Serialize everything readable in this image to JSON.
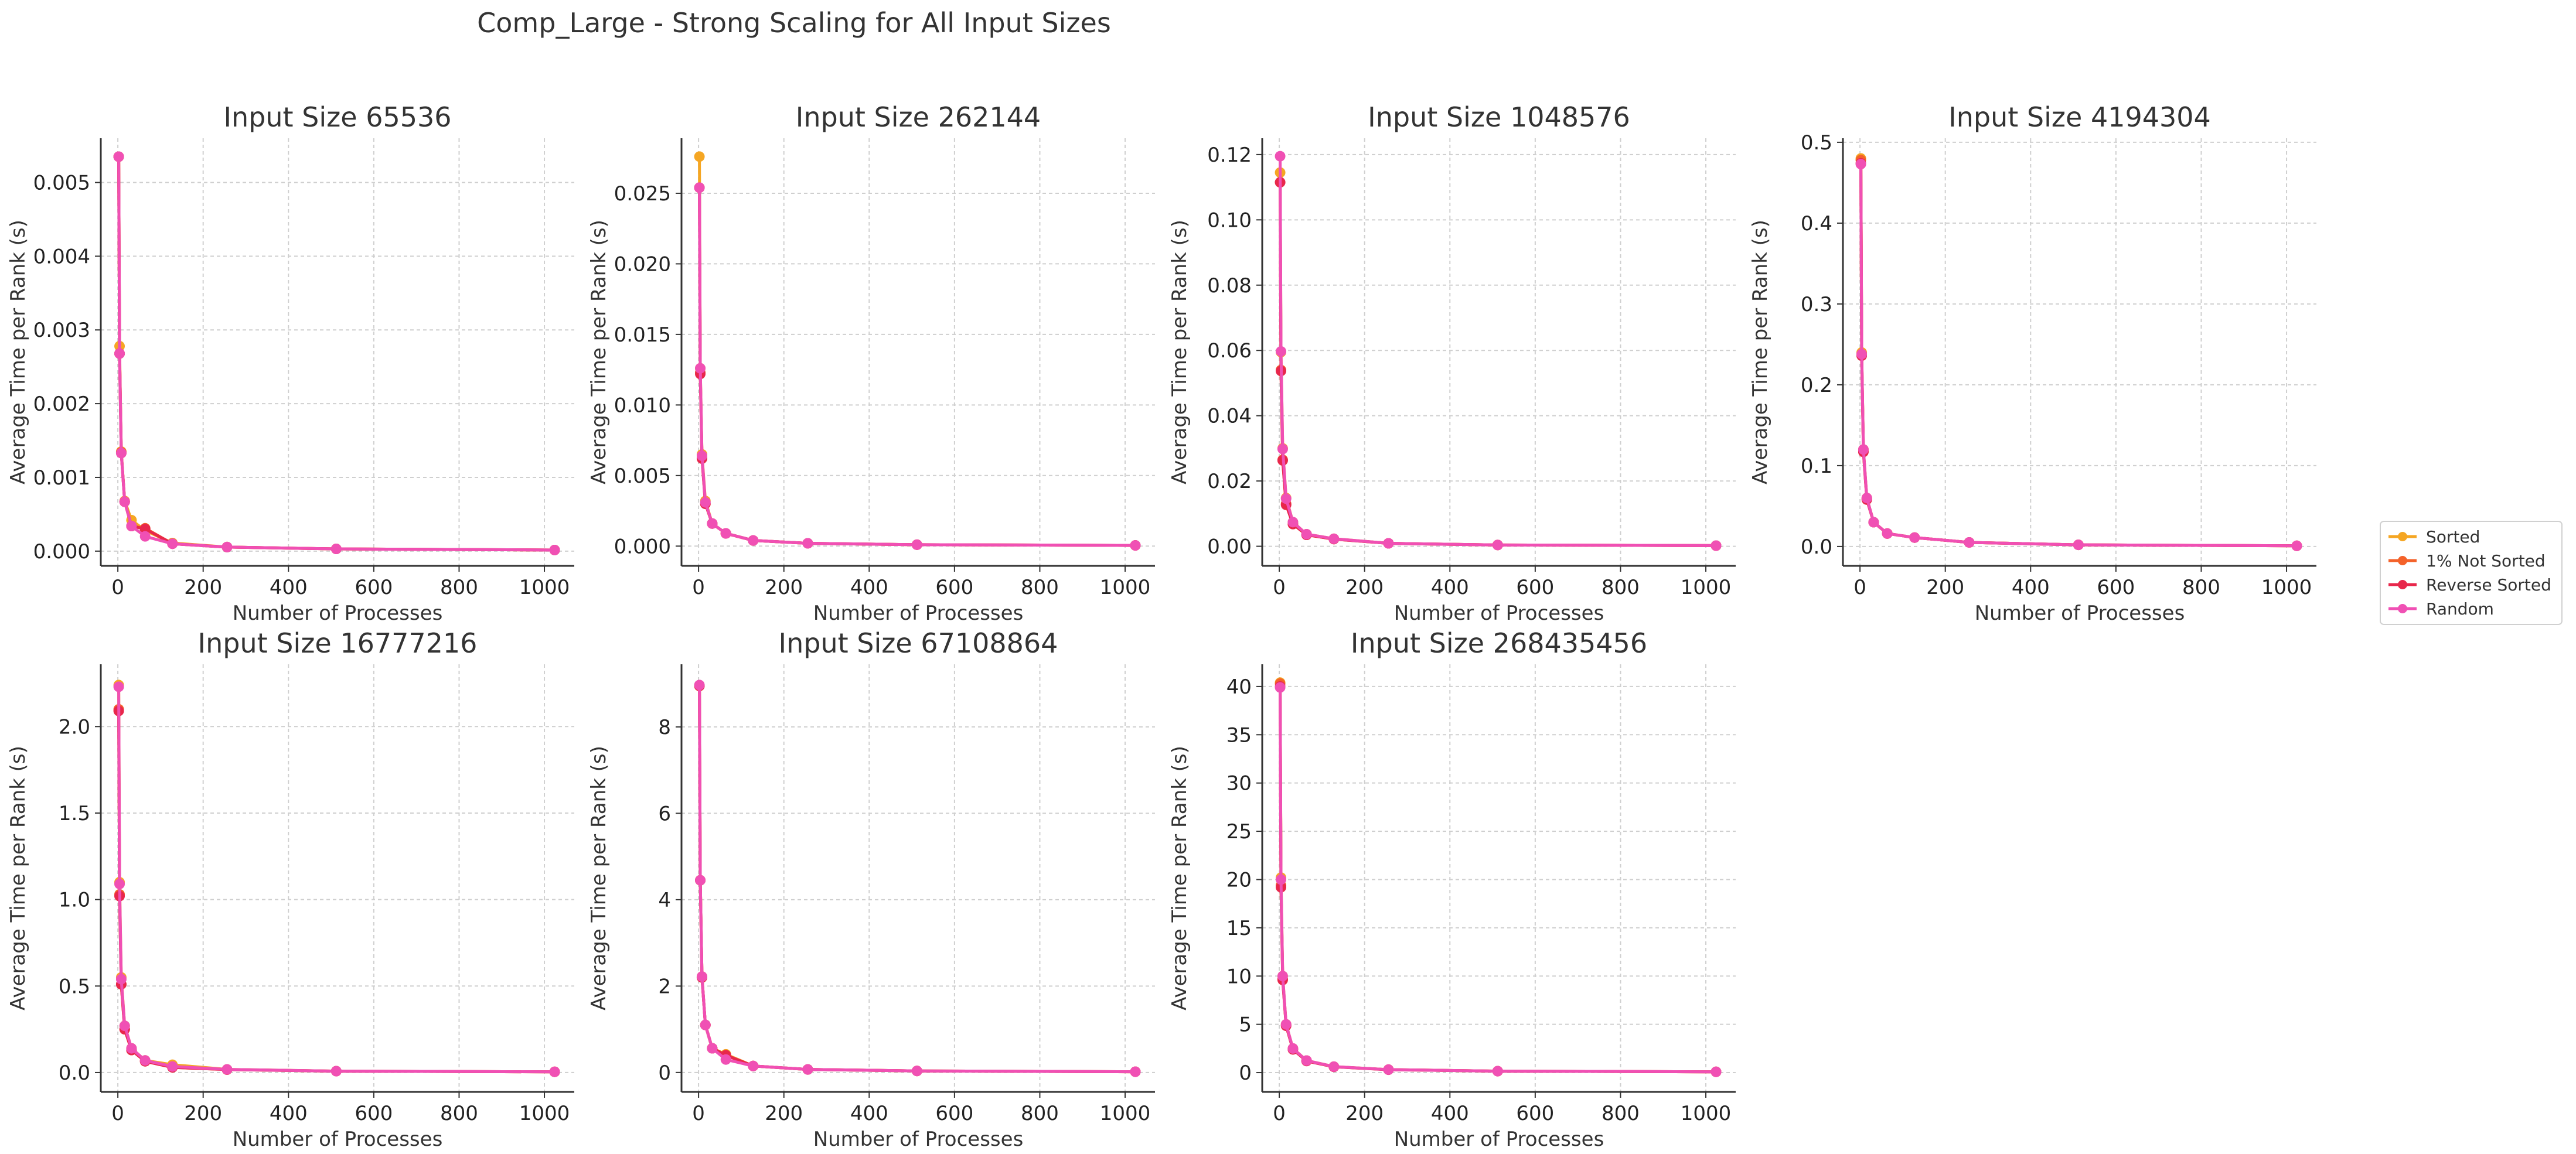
{
  "title": "Comp_Large - Strong Scaling for All Input Sizes",
  "legend": {
    "placement": "right-center",
    "entries": [
      {
        "label": "Sorted",
        "color": "#f5a623"
      },
      {
        "label": "1% Not Sorted",
        "color": "#f4622a"
      },
      {
        "label": "Reverse Sorted",
        "color": "#e8274b"
      },
      {
        "label": "Random",
        "color": "#f050b4"
      }
    ]
  },
  "chart_data": [
    {
      "type": "line",
      "title": "Input Size 65536",
      "xlabel": "Number of Processes",
      "ylabel": "Average Time per Rank (s)",
      "grid": true,
      "xlim": [
        -40,
        1070
      ],
      "ylim": [
        -0.0002,
        0.0056
      ],
      "xticks": [
        0,
        200,
        400,
        600,
        800,
        1000
      ],
      "yticks": [
        0.0,
        0.001,
        0.002,
        0.003,
        0.004,
        0.005
      ],
      "ytick_labels": [
        "0.000",
        "0.001",
        "0.002",
        "0.003",
        "0.004",
        "0.005"
      ],
      "x": [
        2,
        4,
        8,
        16,
        32,
        64,
        128,
        256,
        512,
        1024
      ],
      "series": [
        {
          "name": "Sorted",
          "values": [
            0.00535,
            0.00278,
            0.00135,
            0.00068,
            0.00042,
            0.00028,
            0.00011,
            5.5e-05,
            3e-05,
            1.5e-05
          ]
        },
        {
          "name": "1% Not Sorted",
          "values": [
            0.00535,
            0.00268,
            0.00134,
            0.00067,
            0.00034,
            0.00031,
            0.0001,
            5.5e-05,
            3e-05,
            1.5e-05
          ]
        },
        {
          "name": "Reverse Sorted",
          "values": [
            0.00535,
            0.00268,
            0.00133,
            0.00067,
            0.00034,
            0.0003,
            0.0001,
            5.5e-05,
            3e-05,
            1.5e-05
          ]
        },
        {
          "name": "Random",
          "values": [
            0.00535,
            0.00268,
            0.00133,
            0.00067,
            0.00034,
            0.0002,
            0.0001,
            5.5e-05,
            3e-05,
            1.5e-05
          ]
        }
      ]
    },
    {
      "type": "line",
      "title": "Input Size 262144",
      "xlabel": "Number of Processes",
      "ylabel": "Average Time per Rank (s)",
      "grid": true,
      "xlim": [
        -40,
        1070
      ],
      "ylim": [
        -0.0014,
        0.0289
      ],
      "xticks": [
        0,
        200,
        400,
        600,
        800,
        1000
      ],
      "yticks": [
        0.0,
        0.005,
        0.01,
        0.015,
        0.02,
        0.025
      ],
      "ytick_labels": [
        "0.000",
        "0.005",
        "0.010",
        "0.015",
        "0.020",
        "0.025"
      ],
      "x": [
        2,
        4,
        8,
        16,
        32,
        64,
        128,
        256,
        512,
        1024
      ],
      "series": [
        {
          "name": "Sorted",
          "values": [
            0.0276,
            0.0126,
            0.0065,
            0.0032,
            0.0016,
            0.0009,
            0.0004,
            0.0002,
            0.0001,
            5e-05
          ]
        },
        {
          "name": "1% Not Sorted",
          "values": [
            0.0254,
            0.0123,
            0.0063,
            0.003,
            0.0016,
            0.0009,
            0.0004,
            0.0002,
            0.0001,
            5e-05
          ]
        },
        {
          "name": "Reverse Sorted",
          "values": [
            0.0254,
            0.0122,
            0.0062,
            0.003,
            0.0016,
            0.0009,
            0.0004,
            0.0002,
            0.0001,
            5e-05
          ]
        },
        {
          "name": "Random",
          "values": [
            0.0254,
            0.0126,
            0.0064,
            0.0031,
            0.0016,
            0.0009,
            0.0004,
            0.0002,
            0.0001,
            5e-05
          ]
        }
      ]
    },
    {
      "type": "line",
      "title": "Input Size 1048576",
      "xlabel": "Number of Processes",
      "ylabel": "Average Time per Rank (s)",
      "grid": true,
      "xlim": [
        -40,
        1070
      ],
      "ylim": [
        -0.006,
        0.125
      ],
      "xticks": [
        0,
        200,
        400,
        600,
        800,
        1000
      ],
      "yticks": [
        0.0,
        0.02,
        0.04,
        0.06,
        0.08,
        0.1,
        0.12
      ],
      "ytick_labels": [
        "0.00",
        "0.02",
        "0.04",
        "0.06",
        "0.08",
        "0.10",
        "0.12"
      ],
      "x": [
        2,
        4,
        8,
        16,
        32,
        64,
        128,
        256,
        512,
        1024
      ],
      "series": [
        {
          "name": "Sorted",
          "values": [
            0.1145,
            0.0595,
            0.03,
            0.0148,
            0.0074,
            0.0037,
            0.0023,
            0.0009,
            0.0004,
            0.0002
          ]
        },
        {
          "name": "1% Not Sorted",
          "values": [
            0.1115,
            0.054,
            0.0265,
            0.013,
            0.0068,
            0.0035,
            0.0022,
            0.0009,
            0.0004,
            0.0002
          ]
        },
        {
          "name": "Reverse Sorted",
          "values": [
            0.1115,
            0.0537,
            0.0263,
            0.0127,
            0.0068,
            0.0035,
            0.0022,
            0.0009,
            0.0004,
            0.0002
          ]
        },
        {
          "name": "Random",
          "values": [
            0.1195,
            0.0597,
            0.0298,
            0.0146,
            0.0074,
            0.0037,
            0.0023,
            0.0009,
            0.0004,
            0.0002
          ]
        }
      ]
    },
    {
      "type": "line",
      "title": "Input Size 4194304",
      "xlabel": "Number of Processes",
      "ylabel": "Average Time per Rank (s)",
      "grid": true,
      "xlim": [
        -40,
        1070
      ],
      "ylim": [
        -0.024,
        0.505
      ],
      "xticks": [
        0,
        200,
        400,
        600,
        800,
        1000
      ],
      "yticks": [
        0.0,
        0.1,
        0.2,
        0.3,
        0.4,
        0.5
      ],
      "ytick_labels": [
        "0.0",
        "0.1",
        "0.2",
        "0.3",
        "0.4",
        "0.5"
      ],
      "x": [
        2,
        4,
        8,
        16,
        32,
        64,
        128,
        256,
        512,
        1024
      ],
      "series": [
        {
          "name": "Sorted",
          "values": [
            0.48,
            0.24,
            0.12,
            0.06,
            0.03,
            0.016,
            0.011,
            0.005,
            0.002,
            0.0008
          ]
        },
        {
          "name": "1% Not Sorted",
          "values": [
            0.478,
            0.238,
            0.118,
            0.059,
            0.03,
            0.016,
            0.011,
            0.005,
            0.002,
            0.0008
          ]
        },
        {
          "name": "Reverse Sorted",
          "values": [
            0.474,
            0.236,
            0.117,
            0.058,
            0.03,
            0.016,
            0.011,
            0.005,
            0.002,
            0.0008
          ]
        },
        {
          "name": "Random",
          "values": [
            0.473,
            0.238,
            0.12,
            0.06,
            0.03,
            0.016,
            0.011,
            0.005,
            0.002,
            0.0008
          ]
        }
      ]
    },
    {
      "type": "line",
      "title": "Input Size 16777216",
      "xlabel": "Number of Processes",
      "ylabel": "Average Time per Rank (s)",
      "grid": true,
      "xlim": [
        -40,
        1070
      ],
      "ylim": [
        -0.112,
        2.36
      ],
      "xticks": [
        0,
        200,
        400,
        600,
        800,
        1000
      ],
      "yticks": [
        0.0,
        0.5,
        1.0,
        1.5,
        2.0
      ],
      "ytick_labels": [
        "0.0",
        "0.5",
        "1.0",
        "1.5",
        "2.0"
      ],
      "x": [
        2,
        4,
        8,
        16,
        32,
        64,
        128,
        256,
        512,
        1024
      ],
      "series": [
        {
          "name": "Sorted",
          "values": [
            2.24,
            1.1,
            0.55,
            0.27,
            0.14,
            0.07,
            0.045,
            0.018,
            0.008,
            0.004
          ]
        },
        {
          "name": "1% Not Sorted",
          "values": [
            2.1,
            1.03,
            0.51,
            0.25,
            0.13,
            0.065,
            0.03,
            0.017,
            0.008,
            0.004
          ]
        },
        {
          "name": "Reverse Sorted",
          "values": [
            2.09,
            1.02,
            0.51,
            0.25,
            0.13,
            0.065,
            0.03,
            0.017,
            0.008,
            0.004
          ]
        },
        {
          "name": "Random",
          "values": [
            2.23,
            1.09,
            0.54,
            0.27,
            0.14,
            0.07,
            0.035,
            0.018,
            0.008,
            0.004
          ]
        }
      ]
    },
    {
      "type": "line",
      "title": "Input Size 67108864",
      "xlabel": "Number of Processes",
      "ylabel": "Average Time per Rank (s)",
      "grid": true,
      "xlim": [
        -40,
        1070
      ],
      "ylim": [
        -0.45,
        9.45
      ],
      "xticks": [
        0,
        200,
        400,
        600,
        800,
        1000
      ],
      "yticks": [
        0,
        2,
        4,
        6,
        8
      ],
      "ytick_labels": [
        "0",
        "2",
        "4",
        "6",
        "8"
      ],
      "x": [
        2,
        4,
        8,
        16,
        32,
        64,
        128,
        256,
        512,
        1024
      ],
      "series": [
        {
          "name": "Sorted",
          "values": [
            8.95,
            4.45,
            2.22,
            1.1,
            0.56,
            0.42,
            0.15,
            0.07,
            0.035,
            0.017
          ]
        },
        {
          "name": "1% Not Sorted",
          "values": [
            8.95,
            4.45,
            2.2,
            1.1,
            0.56,
            0.4,
            0.15,
            0.07,
            0.035,
            0.017
          ]
        },
        {
          "name": "Reverse Sorted",
          "values": [
            8.95,
            4.45,
            2.2,
            1.1,
            0.56,
            0.4,
            0.15,
            0.07,
            0.035,
            0.017
          ]
        },
        {
          "name": "Random",
          "values": [
            8.97,
            4.45,
            2.22,
            1.1,
            0.56,
            0.3,
            0.15,
            0.07,
            0.035,
            0.017
          ]
        }
      ]
    },
    {
      "type": "line",
      "title": "Input Size 268435456",
      "xlabel": "Number of Processes",
      "ylabel": "Average Time per Rank (s)",
      "grid": true,
      "xlim": [
        -40,
        1070
      ],
      "ylim": [
        -2.0,
        42.3
      ],
      "xticks": [
        0,
        200,
        400,
        600,
        800,
        1000
      ],
      "yticks": [
        0,
        5,
        10,
        15,
        20,
        25,
        30,
        35,
        40
      ],
      "ytick_labels": [
        "0",
        "5",
        "10",
        "15",
        "20",
        "25",
        "30",
        "35",
        "40"
      ],
      "x": [
        2,
        4,
        8,
        16,
        32,
        64,
        128,
        256,
        512,
        1024
      ],
      "series": [
        {
          "name": "Sorted",
          "values": [
            40.4,
            20.2,
            10.0,
            5.0,
            2.5,
            1.25,
            0.62,
            0.31,
            0.15,
            0.08
          ]
        },
        {
          "name": "1% Not Sorted",
          "values": [
            40.3,
            19.4,
            9.7,
            4.9,
            2.45,
            1.22,
            0.6,
            0.31,
            0.15,
            0.08
          ]
        },
        {
          "name": "Reverse Sorted",
          "values": [
            40.0,
            19.2,
            9.6,
            4.85,
            2.4,
            1.2,
            0.6,
            0.3,
            0.15,
            0.08
          ]
        },
        {
          "name": "Random",
          "values": [
            39.9,
            20.0,
            10.0,
            5.0,
            2.5,
            1.25,
            0.62,
            0.31,
            0.15,
            0.08
          ]
        }
      ]
    }
  ]
}
